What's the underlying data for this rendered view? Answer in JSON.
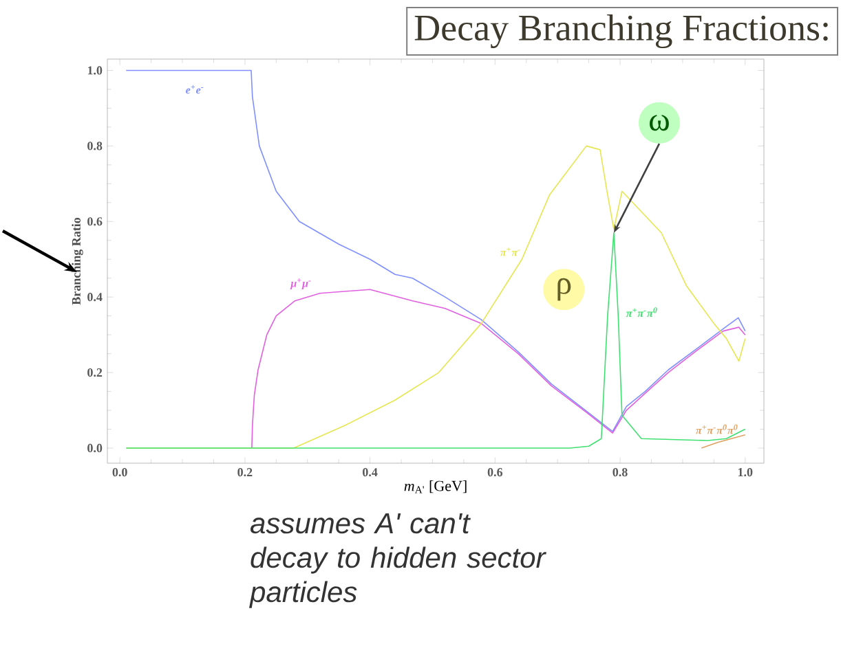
{
  "chart_data": {
    "type": "line",
    "title": "Decay Branching Fractions:",
    "xlabel": "*m*$_{A'}$ [GeV]",
    "ylabel": "Branching Ratio",
    "xlim": [
      -0.02,
      1.03
    ],
    "ylim": [
      -0.04,
      1.03
    ],
    "xticks": [
      {
        "value": 0,
        "label": "0.0"
      },
      {
        "value": 0.2,
        "label": "0.2"
      },
      {
        "value": 0.4,
        "label": "0.4"
      },
      {
        "value": 0.6,
        "label": "0.6"
      },
      {
        "value": 0.8,
        "label": "0.8"
      },
      {
        "value": 1,
        "label": "1.0"
      }
    ],
    "yticks": [
      {
        "value": 0,
        "label": "0.0"
      },
      {
        "value": 0.2,
        "label": "0.2"
      },
      {
        "value": 0.4,
        "label": "0.4"
      },
      {
        "value": 0.6,
        "label": "0.6"
      },
      {
        "value": 0.8,
        "label": "0.8"
      },
      {
        "value": 1,
        "label": "1.0"
      }
    ],
    "series": [
      {
        "name": "e$^{+}$e$^{-}$",
        "color": "#7f8fff",
        "x": [
          0.01,
          0.21,
          0.212,
          0.223,
          0.25,
          0.287,
          0.35,
          0.4,
          0.44,
          0.468,
          0.52,
          0.578,
          0.637,
          0.69,
          0.746,
          0.788,
          0.81,
          0.84,
          0.877,
          0.92,
          0.965,
          0.989,
          1.0
        ],
        "values": [
          1.0,
          1.0,
          0.93,
          0.8,
          0.68,
          0.6,
          0.54,
          0.5,
          0.46,
          0.45,
          0.4,
          0.34,
          0.255,
          0.17,
          0.098,
          0.044,
          0.11,
          0.15,
          0.207,
          0.26,
          0.316,
          0.345,
          0.31
        ]
      },
      {
        "name": "μ$^{+}$μ$^{-}$",
        "color": "#e060e0",
        "x": [
          0.211,
          0.212,
          0.215,
          0.221,
          0.235,
          0.25,
          0.28,
          0.32,
          0.4,
          0.468,
          0.52,
          0.578,
          0.637,
          0.69,
          0.746,
          0.788,
          0.81,
          0.84,
          0.877,
          0.92,
          0.965,
          0.99,
          1.0
        ],
        "values": [
          0.0,
          0.06,
          0.14,
          0.207,
          0.3,
          0.35,
          0.39,
          0.41,
          0.42,
          0.39,
          0.37,
          0.33,
          0.25,
          0.165,
          0.095,
          0.04,
          0.1,
          0.145,
          0.2,
          0.255,
          0.31,
          0.32,
          0.3
        ]
      },
      {
        "name": "π$^{+}$π$^{-}$",
        "color": "#e6e650",
        "x": [
          0.01,
          0.278,
          0.36,
          0.44,
          0.51,
          0.578,
          0.643,
          0.687,
          0.746,
          0.768,
          0.779,
          0.79,
          0.803,
          0.866,
          0.906,
          0.95,
          0.97,
          0.99,
          1.0
        ],
        "values": [
          0.0,
          0.0,
          0.06,
          0.127,
          0.2,
          0.33,
          0.5,
          0.67,
          0.8,
          0.79,
          0.68,
          0.58,
          0.68,
          0.57,
          0.43,
          0.33,
          0.29,
          0.23,
          0.29
        ]
      },
      {
        "name": "π$^{+}$π$^{-}$π$^{0}$",
        "color": "#40e070",
        "x": [
          0.01,
          0.72,
          0.75,
          0.77,
          0.78,
          0.79,
          0.797,
          0.803,
          0.834,
          0.94,
          0.97,
          1.0
        ],
        "values": [
          0.0,
          0.0,
          0.005,
          0.025,
          0.35,
          0.57,
          0.35,
          0.087,
          0.025,
          0.02,
          0.025,
          0.05
        ]
      },
      {
        "name": "π$^{+}$π$^{-}$π$^{0}$π$^{0}$",
        "color": "#e0a060",
        "x": [
          0.93,
          0.956,
          1.0
        ],
        "values": [
          0.0,
          0.015,
          0.035
        ]
      }
    ],
    "annotations": [
      {
        "text": "ρ",
        "x": 0.71,
        "y": 0.42
      },
      {
        "text": "ω",
        "x": 0.79,
        "y": 0.57
      },
      "assumes A' can't decay to hidden sector particles"
    ]
  }
}
